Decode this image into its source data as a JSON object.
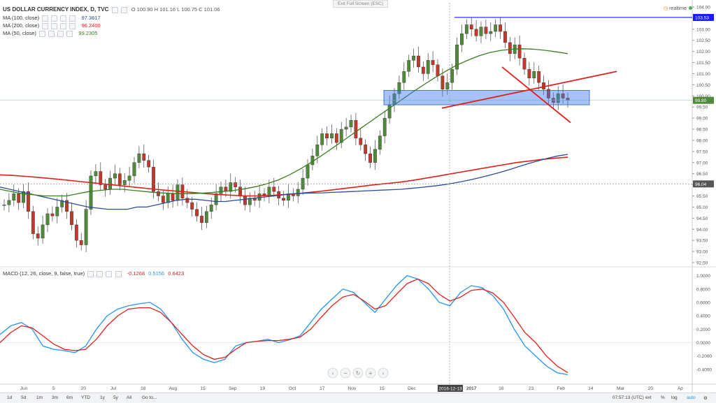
{
  "header": {
    "symbol_title": "US DOLLAR CURRENCY INDEX, D, TVC",
    "ohlc": "O 100.90  H 101.16  L 100.75  C 101.06",
    "exit_full_screen": "Exit Full Screen (ESC)",
    "realtime_label": "realtime"
  },
  "indicators": [
    {
      "label": "MA (100, close)",
      "value": "97.3617",
      "color": "#2b4c9b"
    },
    {
      "label": "MA (200, close)",
      "value": "96.2400",
      "color": "#e0201b"
    },
    {
      "label": "MA (50, close)",
      "value": "99.2305",
      "color": "#3a7d1f"
    }
  ],
  "macd_legend": {
    "label": "MACD (12, 26, close, 9, false, true)",
    "values": [
      "-0.1268",
      "0.5156",
      "0.6423"
    ],
    "colors": [
      "#e0201b",
      "#2196f3",
      "#e0201b"
    ]
  },
  "bottom_bar": {
    "timeframes": [
      "1d",
      "5d",
      "1m",
      "3m",
      "6m",
      "YTD",
      "1y",
      "5y",
      "All",
      "Go to..."
    ],
    "clock": "07:57:13 (UTC)",
    "options": [
      "ext",
      "%",
      "log",
      "auto"
    ]
  },
  "chart_data": [
    {
      "type": "candlestick",
      "title": "US DOLLAR CURRENCY INDEX, D, TVC",
      "ylim": [
        92.5,
        104.0
      ],
      "y_ticks": [
        "104.00",
        "103.50",
        "103.00",
        "102.50",
        "102.00",
        "101.50",
        "101.00",
        "100.50",
        "100.00",
        "99.50",
        "99.00",
        "98.50",
        "98.00",
        "97.50",
        "97.00",
        "96.50",
        "96.00",
        "95.50",
        "95.00",
        "94.50",
        "94.00",
        "93.50",
        "93.00",
        "92.50"
      ],
      "x_ticks": [
        "Jun",
        "5",
        "20",
        "Jul",
        "18",
        "Aug",
        "15",
        "Sep",
        "19",
        "Oct",
        "17",
        "Nov",
        "15",
        "Dec",
        "9",
        "2017",
        "16",
        "23",
        "Feb",
        "14",
        "Mar",
        "20",
        "Ap"
      ],
      "price_labels": {
        "resistance": "103.53",
        "current_level": "96.04",
        "last_price": "99.80"
      },
      "crosshair_date": "2016-12-13",
      "closes": [
        95.1,
        95.3,
        95.6,
        95.2,
        95.7,
        94.8,
        93.8,
        93.6,
        94.2,
        94.7,
        94.6,
        95.0,
        95.3,
        94.8,
        94.2,
        93.5,
        93.3,
        94.9,
        96.4,
        96.6,
        96.0,
        95.8,
        96.3,
        96.5,
        96.0,
        96.2,
        96.4,
        97.0,
        97.4,
        97.1,
        96.8,
        95.7,
        95.5,
        95.2,
        95.6,
        95.3,
        96.0,
        95.4,
        95.2,
        94.9,
        94.6,
        94.3,
        94.8,
        95.1,
        95.6,
        95.9,
        95.7,
        96.1,
        95.9,
        95.5,
        95.1,
        95.4,
        95.3,
        95.6,
        95.5,
        95.9,
        95.7,
        95.4,
        95.3,
        95.6,
        95.5,
        95.8,
        96.3,
        96.9,
        97.3,
        97.8,
        98.3,
        98.1,
        98.3,
        97.9,
        98.5,
        98.6,
        98.9,
        98.1,
        97.8,
        97.4,
        97.0,
        97.6,
        98.2,
        99.0,
        99.6,
        100.1,
        100.6,
        101.1,
        101.6,
        101.8,
        101.3,
        101.0,
        101.6,
        101.4,
        100.9,
        100.3,
        100.6,
        101.2,
        102.3,
        102.8,
        103.2,
        103.0,
        102.7,
        103.1,
        102.8,
        102.9,
        103.2,
        102.9,
        102.4,
        101.9,
        102.3,
        101.7,
        101.2,
        100.8,
        101.1,
        100.6,
        100.3,
        99.9,
        99.7,
        100.1,
        99.9,
        99.8
      ],
      "ma_100": [
        95.9,
        95.8,
        95.7,
        95.6,
        95.5,
        95.4,
        95.3,
        95.2,
        95.1,
        95.0,
        94.95,
        94.9,
        94.9,
        94.9,
        95.0,
        95.0,
        95.1,
        95.2,
        95.3,
        95.35,
        95.35,
        95.3,
        95.25,
        95.25,
        95.3,
        95.35,
        95.4,
        95.45,
        95.5,
        95.55,
        95.6,
        95.62,
        95.63,
        95.64,
        95.66,
        95.68,
        95.7,
        95.72,
        95.74,
        95.76,
        95.78,
        95.8,
        95.84,
        95.88,
        95.93,
        95.98,
        96.05,
        96.13,
        96.22,
        96.32,
        96.43,
        96.55,
        96.68,
        96.82,
        96.96,
        97.08,
        97.2,
        97.3,
        97.37
      ],
      "ma_200": [
        96.45,
        96.42,
        96.38,
        96.33,
        96.28,
        96.22,
        96.16,
        96.1,
        96.04,
        95.98,
        95.92,
        95.86,
        95.8,
        95.75,
        95.7,
        95.65,
        95.6,
        95.56,
        95.53,
        95.5,
        95.5,
        95.52,
        95.56,
        95.6,
        95.66,
        95.72,
        95.79,
        95.86,
        95.93,
        96.0,
        96.06,
        96.12,
        96.2,
        96.3,
        96.4,
        96.5,
        96.6,
        96.7,
        96.8,
        96.9,
        97.0,
        97.07,
        97.14,
        97.2,
        97.24
      ],
      "ma_50": [
        95.8,
        95.7,
        95.6,
        95.55,
        95.5,
        95.5,
        95.5,
        95.6,
        95.7,
        95.75,
        95.8,
        95.8,
        95.75,
        95.7,
        95.65,
        95.62,
        95.6,
        95.6,
        95.62,
        95.65,
        95.7,
        95.75,
        95.82,
        95.92,
        96.05,
        96.22,
        96.45,
        96.72,
        97.02,
        97.35,
        97.7,
        98.05,
        98.4,
        98.75,
        99.1,
        99.45,
        99.8,
        100.15,
        100.48,
        100.8,
        101.1,
        101.38,
        101.6,
        101.8,
        101.95,
        102.05,
        102.1,
        102.12,
        102.1,
        102.05,
        101.98,
        101.9
      ]
    },
    {
      "type": "line",
      "title": "MACD (12, 26, close, 9, false, true)",
      "ylim": [
        -0.6,
        1.1
      ],
      "y_ticks": [
        "1.0000",
        "0.8000",
        "0.6000",
        "0.4000",
        "0.2000",
        "0.0000",
        "-0.2000",
        "-0.4000"
      ],
      "series": [
        {
          "name": "MACD",
          "color": "#2196f3",
          "values": [
            0.12,
            0.25,
            0.3,
            0.2,
            -0.05,
            -0.1,
            -0.12,
            -0.15,
            -0.05,
            0.2,
            0.4,
            0.5,
            0.55,
            0.58,
            0.6,
            0.5,
            0.3,
            0.05,
            -0.15,
            -0.25,
            -0.3,
            -0.25,
            -0.05,
            0.0,
            0.02,
            0.05,
            0.0,
            0.04,
            0.1,
            0.3,
            0.5,
            0.65,
            0.8,
            0.75,
            0.6,
            0.45,
            0.65,
            0.85,
            1.0,
            0.95,
            0.8,
            0.6,
            0.55,
            0.75,
            0.85,
            0.82,
            0.7,
            0.5,
            0.2,
            -0.05,
            -0.2,
            -0.35,
            -0.45,
            -0.48
          ]
        },
        {
          "name": "Signal",
          "color": "#e0201b",
          "values": [
            0.0,
            0.15,
            0.25,
            0.22,
            0.1,
            -0.02,
            -0.1,
            -0.12,
            -0.1,
            0.05,
            0.25,
            0.4,
            0.5,
            0.52,
            0.52,
            0.45,
            0.3,
            0.12,
            -0.05,
            -0.18,
            -0.25,
            -0.22,
            -0.1,
            0.0,
            0.02,
            0.03,
            0.03,
            0.05,
            0.08,
            0.2,
            0.38,
            0.55,
            0.68,
            0.72,
            0.62,
            0.5,
            0.55,
            0.72,
            0.88,
            0.95,
            0.88,
            0.72,
            0.62,
            0.68,
            0.78,
            0.8,
            0.74,
            0.6,
            0.38,
            0.15,
            0.0,
            -0.2,
            -0.35,
            -0.45
          ]
        }
      ]
    }
  ]
}
